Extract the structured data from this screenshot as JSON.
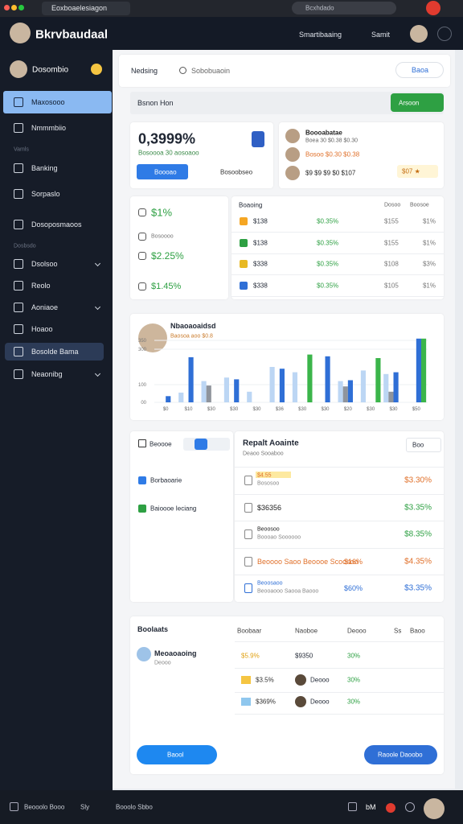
{
  "browser": {
    "tab_title": "Eoxboaelesiagon",
    "search": "Bcxhdado"
  },
  "header": {
    "title": "Bkrvbaudaal",
    "links": [
      "Smartibaaing",
      "Samit"
    ]
  },
  "sidebar": {
    "user": "Dosombio",
    "nav1": [
      "Maxosooo",
      "Nmmmbiio"
    ],
    "section1": "Vamls",
    "nav2": [
      "Banking",
      "Sorpaslo",
      "Dosoposmaoos"
    ],
    "section2": "Dosbsdo",
    "nav3": [
      "Dsolsoo",
      "Reolo",
      "Aoniaoe",
      "Hoaoo",
      "Bosolde Bama",
      "Neaonibg"
    ]
  },
  "toolbar": {
    "label": "Nedsing",
    "search": "Sobobuaoin",
    "button": "Baoa"
  },
  "banner": {
    "title": "Bsnon Hon",
    "button": "Arsoon"
  },
  "balance": {
    "value": "0,3999%",
    "sub": "Bosoooa 30 aosoaoo",
    "button": "Boooao",
    "dropdown": "Bosoobseo"
  },
  "people": {
    "rows": [
      [
        "Boooabatae",
        "Boea 30 $0.38 $0.30"
      ],
      [
        "Bosoo $0.30 $0.38"
      ],
      [
        "$9 $9 $9 $0 $107"
      ]
    ],
    "badge": "$07 ★"
  },
  "stats": [
    "$1%",
    "Bosoooo",
    "$2.25%",
    "$1.45%"
  ],
  "table": {
    "headers": [
      "Boaoing",
      "Dosoo",
      "Boosoe"
    ],
    "rows": [
      [
        "$138",
        "$0.35%",
        "$155",
        "$1%"
      ],
      [
        "$138",
        "$0.35%",
        "$155",
        "$1%"
      ],
      [
        "$338",
        "$0.35%",
        "$108",
        "$3%"
      ],
      [
        "$338",
        "$0.35%",
        "$105",
        "$1%"
      ]
    ]
  },
  "activity_chart": {
    "title": "Nbaoaoaidsd",
    "subtitle": "Baosoa aoo $0.8",
    "ylim": [
      0,
      400
    ],
    "yticks": [
      {
        "value": 0,
        "label": "00"
      },
      {
        "value": 100,
        "label": "100"
      },
      {
        "value": 300,
        "label": "300"
      },
      {
        "value": 350,
        "label": "350"
      }
    ],
    "categories": [
      "$0",
      "$10",
      "$30",
      "$30",
      "$30",
      "$36",
      "$30",
      "$30",
      "$20",
      "$30",
      "$30",
      "$50"
    ],
    "series": [
      {
        "color": "#bcd6f4",
        "values": [
          null,
          55,
          120,
          140,
          60,
          200,
          170,
          null,
          120,
          180,
          160,
          null
        ]
      },
      {
        "color": "#8f949c",
        "values": [
          null,
          null,
          95,
          null,
          null,
          null,
          null,
          null,
          90,
          null,
          60,
          null
        ]
      },
      {
        "color": "#2f6fd6",
        "values": [
          35,
          255,
          null,
          130,
          null,
          190,
          null,
          260,
          125,
          null,
          170,
          360
        ]
      },
      {
        "color": "#3bb54a",
        "values": [
          null,
          null,
          null,
          null,
          null,
          null,
          270,
          null,
          null,
          250,
          null,
          360
        ]
      }
    ]
  },
  "filter": {
    "label": "Beoooe",
    "items": [
      "Borbaoarie",
      "Baioooe Ieciang"
    ]
  },
  "activity": {
    "title": "Repalt Aoainte",
    "sub": "Deaoo Sooaboo",
    "dropdown": "Boo",
    "rows": [
      {
        "label": "$4.55",
        "sub": "Bososoo",
        "value": "$3.30%"
      },
      {
        "label": "$36356",
        "value": "$3.35%"
      },
      {
        "label": "Beoosoo",
        "sub": "Boooao Soooooo",
        "value": "$8.35%"
      },
      {
        "label": "Beoooo Saoo Beoooe Scoosoo",
        "mid": "$16%",
        "value": "$4.35%"
      },
      {
        "label": "Beoosaoo",
        "sub": "Beooaooo Saooa Baooo",
        "mid": "$60%",
        "value": "$3.35%"
      }
    ]
  },
  "summary": {
    "title": "Boolaats",
    "headers": [
      "Boobaar",
      "Naoboe",
      "Deooo",
      "Ss",
      "Baoo"
    ],
    "profile_name": "Meoaoaoing",
    "profile_sub": "Deooo",
    "rows": [
      [
        "$5.9%",
        "$9350",
        "30%"
      ],
      [
        "$3.5%",
        "Deooo",
        "30%"
      ],
      [
        "$369%",
        "Deooo",
        "30%"
      ]
    ],
    "buttons": [
      "Baool",
      "Raoole Daoobo"
    ]
  },
  "footer": [
    "Beooolo Booo",
    "Sly",
    "Booolo Sbbo",
    "bM"
  ]
}
